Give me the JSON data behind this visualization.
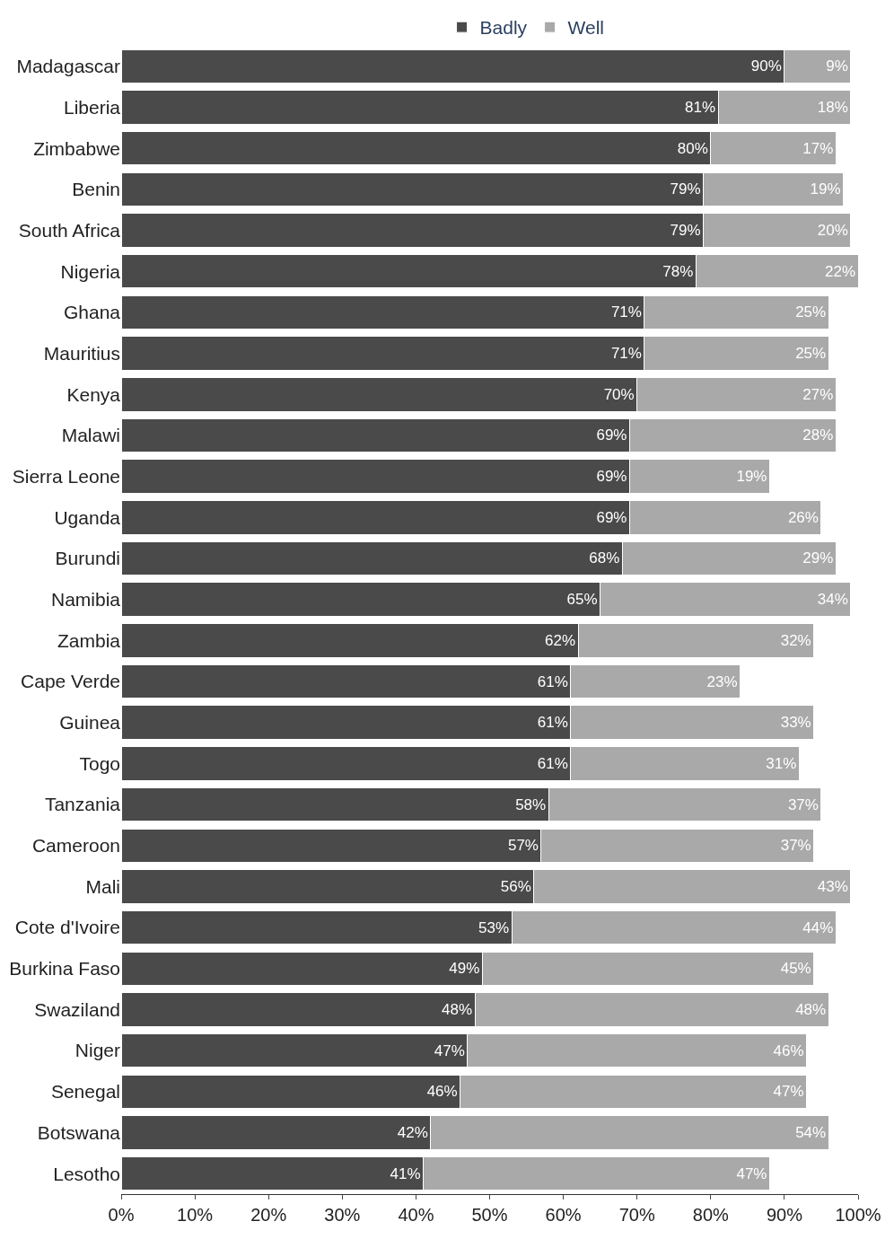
{
  "chart_data": {
    "type": "bar",
    "orientation": "horizontal",
    "stacked": true,
    "legend": "top",
    "categories": [
      "Madagascar",
      "Liberia",
      "Zimbabwe",
      "Benin",
      "South Africa",
      "Nigeria",
      "Ghana",
      "Mauritius",
      "Kenya",
      "Malawi",
      "Sierra Leone",
      "Uganda",
      "Burundi",
      "Namibia",
      "Zambia",
      "Cape Verde",
      "Guinea",
      "Togo",
      "Tanzania",
      "Cameroon",
      "Mali",
      "Cote d'Ivoire",
      "Burkina Faso",
      "Swaziland",
      "Niger",
      "Senegal",
      "Botswana",
      "Lesotho"
    ],
    "series": [
      {
        "name": "Badly",
        "color": "#4a4a4a",
        "values": [
          90,
          81,
          80,
          79,
          79,
          78,
          71,
          71,
          70,
          69,
          69,
          69,
          68,
          65,
          62,
          61,
          61,
          61,
          58,
          57,
          56,
          53,
          49,
          48,
          47,
          46,
          42,
          41
        ],
        "value_labels": [
          "90%",
          "81%",
          "80%",
          "79%",
          "79%",
          "78%",
          "71%",
          "71%",
          "70%",
          "69%",
          "69%",
          "69%",
          "68%",
          "65%",
          "62%",
          "61%",
          "61%",
          "61%",
          "58%",
          "57%",
          "56%",
          "53%",
          "49%",
          "48%",
          "47%",
          "46%",
          "42%",
          "41%"
        ]
      },
      {
        "name": "Well",
        "color": "#a9a9a9",
        "values": [
          9,
          18,
          17,
          19,
          20,
          22,
          25,
          25,
          27,
          28,
          19,
          26,
          29,
          34,
          32,
          23,
          33,
          31,
          37,
          37,
          43,
          44,
          45,
          48,
          46,
          47,
          54,
          47
        ],
        "value_labels": [
          "9%",
          "18%",
          "17%",
          "19%",
          "20%",
          "22%",
          "25%",
          "25%",
          "27%",
          "28%",
          "19%",
          "26%",
          "29%",
          "34%",
          "32%",
          "23%",
          "33%",
          "31%",
          "37%",
          "37%",
          "43%",
          "44%",
          "45%",
          "48%",
          "46%",
          "47%",
          "54%",
          "47%"
        ]
      }
    ],
    "xlim": [
      0,
      100
    ],
    "xticks": [
      {
        "value": 0,
        "label": "0%"
      },
      {
        "value": 10,
        "label": "10%"
      },
      {
        "value": 20,
        "label": "20%"
      },
      {
        "value": 30,
        "label": "30%"
      },
      {
        "value": 40,
        "label": "40%"
      },
      {
        "value": 50,
        "label": "50%"
      },
      {
        "value": 60,
        "label": "60%"
      },
      {
        "value": 70,
        "label": "70%"
      },
      {
        "value": 80,
        "label": "80%"
      },
      {
        "value": 90,
        "label": "90%"
      },
      {
        "value": 100,
        "label": "100%"
      }
    ]
  }
}
